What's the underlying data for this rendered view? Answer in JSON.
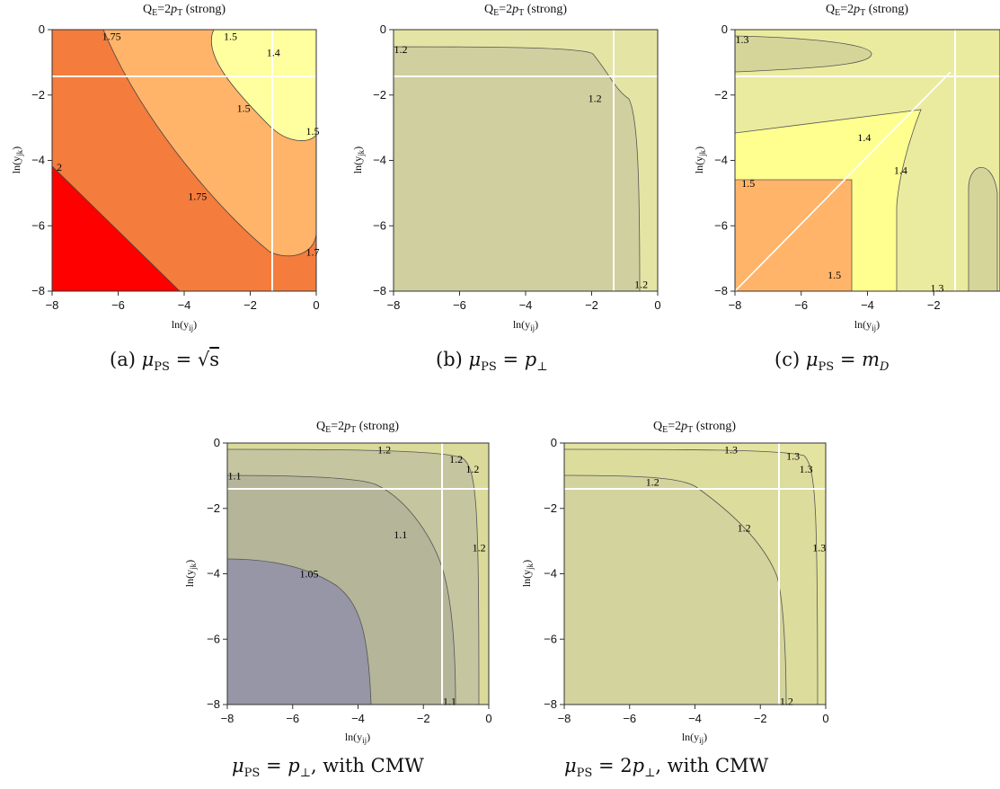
{
  "chart_data": [
    {
      "type": "contour",
      "title": "Q_E=2p_T (strong)",
      "xlabel": "ln(y_ij)",
      "ylabel": "ln(y_jk)",
      "xlim": [
        -8,
        0
      ],
      "ylim": [
        -8,
        0
      ],
      "xticks": [
        "-8",
        "-6",
        "-4",
        "-2",
        "0"
      ],
      "yticks": [
        "0",
        "-2",
        "-4",
        "-6",
        "-8"
      ],
      "guide_lines": {
        "x": -1.4,
        "y": -1.4
      },
      "caption": "(a) μ_PS = √s",
      "contour_labels": [
        {
          "text": "1.75",
          "x": -6.2,
          "y": -0.2
        },
        {
          "text": "1.5",
          "x": -2.6,
          "y": -0.2
        },
        {
          "text": "1.4",
          "x": -1.3,
          "y": -0.7
        },
        {
          "text": "1.5",
          "x": -2.2,
          "y": -2.4
        },
        {
          "text": "1.5",
          "x": 0.0,
          "y": -3.1
        },
        {
          "text": "2",
          "x": -7.9,
          "y": -4.2
        },
        {
          "text": "1.75",
          "x": -3.6,
          "y": -5.1
        },
        {
          "text": "1.7",
          "x": 0.0,
          "y": -6.8
        }
      ]
    },
    {
      "type": "contour",
      "title": "Q_E=2p_T (strong)",
      "xlabel": "ln(y_ij)",
      "ylabel": "ln(y_jk)",
      "xlim": [
        -8,
        0
      ],
      "ylim": [
        -8,
        0
      ],
      "xticks": [
        "-8",
        "-6",
        "-4",
        "-2",
        "0"
      ],
      "yticks": [
        "0",
        "-2",
        "-4",
        "-6",
        "-8"
      ],
      "guide_lines": {
        "x": -1.4,
        "y": -1.4
      },
      "caption": "(b) μ_PS = p_⊥",
      "contour_labels": [
        {
          "text": "1.2",
          "x": -7.8,
          "y": -0.6
        },
        {
          "text": "1.2",
          "x": -1.9,
          "y": -2.1
        },
        {
          "text": "1.2",
          "x": -0.5,
          "y": -7.8
        }
      ]
    },
    {
      "type": "contour",
      "title": "Q_E=2p_T (strong)",
      "xlabel": "ln(y_ij)",
      "ylabel": "ln(y_jk)",
      "xlim": [
        -8,
        0
      ],
      "ylim": [
        -8,
        0
      ],
      "xticks": [
        "-8",
        "-6",
        "-4",
        "-2"
      ],
      "yticks": [
        "0",
        "-2",
        "-4",
        "-6",
        "-8"
      ],
      "guide_lines": {
        "x": -1.4,
        "y": -1.4
      },
      "caption": "(c) μ_PS = m_D",
      "contour_labels": [
        {
          "text": "1.3",
          "x": -7.8,
          "y": -0.3
        },
        {
          "text": "1.4",
          "x": -4.1,
          "y": -3.3
        },
        {
          "text": "1.4",
          "x": -3.0,
          "y": -4.3
        },
        {
          "text": "1.5",
          "x": -7.6,
          "y": -4.7
        },
        {
          "text": "1.5",
          "x": -5.0,
          "y": -7.5
        },
        {
          "text": "1.3",
          "x": -1.9,
          "y": -7.9
        }
      ]
    },
    {
      "type": "contour",
      "title": "Q_E=2p_T (strong)",
      "xlabel": "ln(y_ij)",
      "ylabel": "ln(y_jk)",
      "xlim": [
        -8,
        0
      ],
      "ylim": [
        -8,
        0
      ],
      "xticks": [
        "-8",
        "-6",
        "-4",
        "-2",
        "0"
      ],
      "yticks": [
        "0",
        "-2",
        "-4",
        "-6",
        "-8"
      ],
      "guide_lines": {
        "x": -1.4,
        "y": -1.4
      },
      "caption": "μ_PS = p_⊥, with CMW",
      "contour_labels": [
        {
          "text": "1.2",
          "x": -3.2,
          "y": -0.2
        },
        {
          "text": "1.2",
          "x": -1.0,
          "y": -0.5
        },
        {
          "text": "1.2",
          "x": -0.5,
          "y": -0.8
        },
        {
          "text": "1.1",
          "x": -7.9,
          "y": -1.0
        },
        {
          "text": "1.1",
          "x": -2.7,
          "y": -2.8
        },
        {
          "text": "1.2",
          "x": -0.3,
          "y": -3.2
        },
        {
          "text": "1.05",
          "x": -5.5,
          "y": -4.0
        },
        {
          "text": "1.1",
          "x": -1.2,
          "y": -7.9
        }
      ]
    },
    {
      "type": "contour",
      "title": "Q_E=2p_T (strong)",
      "xlabel": "ln(y_ij)",
      "ylabel": "ln(y_jk)",
      "xlim": [
        -8,
        0
      ],
      "ylim": [
        -8,
        0
      ],
      "xticks": [
        "-8",
        "-6",
        "-4",
        "-2",
        "0"
      ],
      "yticks": [
        "0",
        "-2",
        "-4",
        "-6",
        "-8"
      ],
      "guide_lines": {
        "x": -1.4,
        "y": -1.4
      },
      "caption": "μ_PS = 2p_⊥, with CMW",
      "contour_labels": [
        {
          "text": "1.3",
          "x": -2.9,
          "y": -0.2
        },
        {
          "text": "1.3",
          "x": -1.0,
          "y": -0.4
        },
        {
          "text": "1.3",
          "x": -0.6,
          "y": -0.8
        },
        {
          "text": "1.2",
          "x": -5.3,
          "y": -1.2
        },
        {
          "text": "1.2",
          "x": -2.5,
          "y": -2.6
        },
        {
          "text": "1.3",
          "x": -0.2,
          "y": -3.2
        },
        {
          "text": "1.2",
          "x": -1.2,
          "y": -7.9
        }
      ]
    }
  ]
}
